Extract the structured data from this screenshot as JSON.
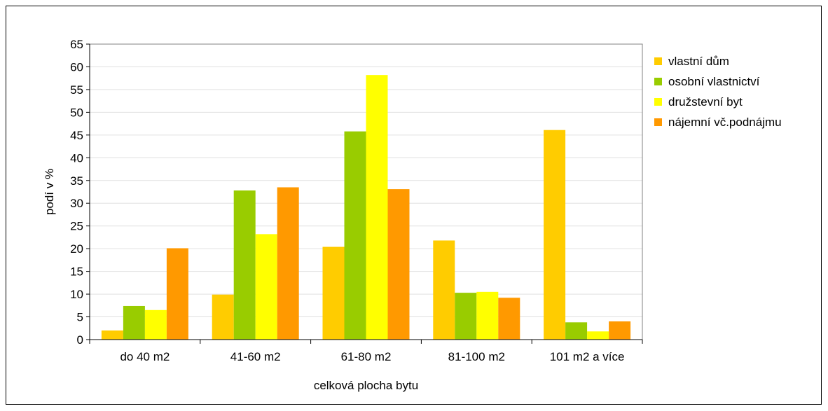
{
  "chart_data": {
    "type": "bar",
    "title": "",
    "xlabel": "celková plocha bytu",
    "ylabel": "podí v %",
    "ylim": [
      0,
      65
    ],
    "yticks": [
      0,
      5,
      10,
      15,
      20,
      25,
      30,
      35,
      40,
      45,
      50,
      55,
      60,
      65
    ],
    "grid": true,
    "legend_position": "right",
    "categories": [
      "do 40 m2",
      "41-60 m2",
      "61-80 m2",
      "81-100 m2",
      "101 m2 a více"
    ],
    "series": [
      {
        "name": "vlastní dům",
        "color": "#FFCC00",
        "values": [
          2.0,
          9.9,
          20.4,
          21.8,
          46.1
        ]
      },
      {
        "name": "osobní vlastnictví",
        "color": "#99CC00",
        "values": [
          7.4,
          32.8,
          45.8,
          10.3,
          3.8
        ]
      },
      {
        "name": "družstevní byt",
        "color": "#FFFF00",
        "values": [
          6.5,
          23.2,
          58.2,
          10.5,
          1.8
        ]
      },
      {
        "name": "nájemní vč.podnájmu",
        "color": "#FF9900",
        "values": [
          20.1,
          33.5,
          33.1,
          9.2,
          4.0
        ]
      }
    ]
  }
}
